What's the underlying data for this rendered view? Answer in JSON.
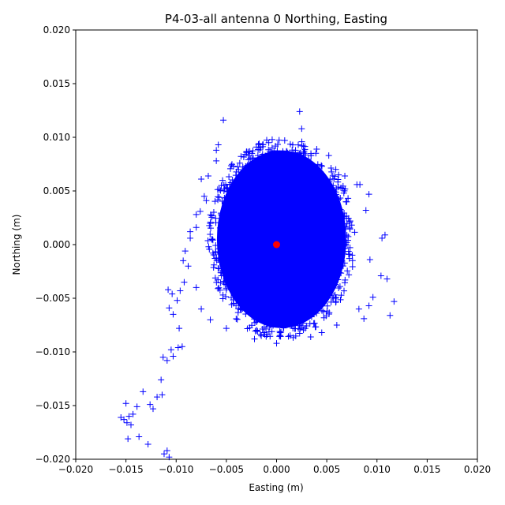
{
  "chart_data": {
    "type": "scatter",
    "title": "P4-03-all antenna 0 Northing, Easting",
    "xlabel": "Easting (m)",
    "ylabel": "Northing (m)",
    "xlim": [
      -0.02,
      0.02
    ],
    "ylim": [
      -0.02,
      0.02
    ],
    "xticks": [
      -0.02,
      -0.015,
      -0.01,
      -0.005,
      0.0,
      0.005,
      0.01,
      0.015,
      0.02
    ],
    "yticks": [
      -0.02,
      -0.015,
      -0.01,
      -0.005,
      0.0,
      0.005,
      0.01,
      0.015,
      0.02
    ],
    "xtick_labels": [
      "−0.020",
      "−0.015",
      "−0.010",
      "−0.005",
      "0.000",
      "0.005",
      "0.010",
      "0.015",
      "0.020"
    ],
    "ytick_labels": [
      "−0.020",
      "−0.015",
      "−0.010",
      "−0.005",
      "0.000",
      "0.005",
      "0.010",
      "0.015",
      "0.020"
    ],
    "grid": false,
    "series": [
      {
        "marker": "+",
        "color": "#0000ff",
        "cluster": {
          "description_of_shape": "dense cloud",
          "center": [
            0.0,
            0.0
          ],
          "x_range": [
            -0.0065,
            0.0075
          ],
          "y_range": [
            -0.0085,
            0.0095
          ]
        },
        "points": [
          [
            -0.0155,
            -0.0161
          ],
          [
            -0.0152,
            -0.0163
          ],
          [
            -0.0149,
            -0.0166
          ],
          [
            -0.0147,
            -0.016
          ],
          [
            -0.0145,
            -0.0168
          ],
          [
            -0.0143,
            -0.0158
          ],
          [
            -0.015,
            -0.0148
          ],
          [
            -0.0148,
            -0.0181
          ],
          [
            -0.0139,
            -0.0151
          ],
          [
            -0.0133,
            -0.0137
          ],
          [
            -0.0137,
            -0.0179
          ],
          [
            -0.0128,
            -0.0186
          ],
          [
            -0.0126,
            -0.0149
          ],
          [
            -0.0123,
            -0.0153
          ],
          [
            -0.0119,
            -0.0142
          ],
          [
            -0.0114,
            -0.014
          ],
          [
            -0.0115,
            -0.0126
          ],
          [
            -0.0112,
            -0.0195
          ],
          [
            -0.0109,
            -0.0192
          ],
          [
            -0.0107,
            -0.0198
          ],
          [
            -0.0113,
            -0.0105
          ],
          [
            -0.0109,
            -0.0108
          ],
          [
            -0.0103,
            -0.0104
          ],
          [
            -0.0105,
            -0.0098
          ],
          [
            -0.0098,
            -0.0096
          ],
          [
            -0.0094,
            -0.0095
          ],
          [
            -0.0097,
            -0.0078
          ],
          [
            -0.0107,
            -0.0059
          ],
          [
            -0.0103,
            -0.0065
          ],
          [
            -0.0099,
            -0.0052
          ],
          [
            -0.0108,
            -0.0042
          ],
          [
            -0.0104,
            -0.0046
          ],
          [
            -0.0096,
            -0.0043
          ],
          [
            -0.0092,
            -0.0035
          ],
          [
            -0.0093,
            -0.0015
          ],
          [
            -0.0091,
            -0.0006
          ],
          [
            -0.0086,
            0.0006
          ],
          [
            -0.008,
            0.0016
          ],
          [
            -0.0076,
            0.0031
          ],
          [
            -0.0072,
            0.0045
          ],
          [
            -0.0075,
            0.0061
          ],
          [
            -0.0068,
            0.0064
          ],
          [
            -0.006,
            0.0088
          ],
          [
            -0.0058,
            0.0093
          ],
          [
            -0.0053,
            0.0116
          ],
          [
            0.0023,
            0.0124
          ],
          [
            0.0025,
            0.0108
          ],
          [
            -0.006,
            0.0078
          ],
          [
            0.0113,
            -0.0066
          ],
          [
            0.0117,
            -0.0053
          ],
          [
            0.011,
            -0.0032
          ],
          [
            0.0104,
            -0.0029
          ],
          [
            0.0096,
            -0.0049
          ],
          [
            0.0092,
            -0.0057
          ],
          [
            0.0087,
            -0.0069
          ],
          [
            0.0082,
            -0.006
          ],
          [
            0.0108,
            0.0009
          ],
          [
            0.0105,
            0.0006
          ],
          [
            0.0093,
            -0.0014
          ],
          [
            0.0089,
            0.0032
          ],
          [
            0.0092,
            0.0047
          ],
          [
            0.0083,
            0.0056
          ],
          [
            0.008,
            0.0056
          ],
          [
            0.0068,
            0.0064
          ],
          [
            0.0059,
            0.007
          ],
          [
            0.0052,
            0.0083
          ],
          [
            0.004,
            0.0089
          ],
          [
            0.006,
            -0.0075
          ],
          [
            0.0045,
            -0.0082
          ],
          [
            0.0034,
            -0.0086
          ],
          [
            0.0,
            -0.0092
          ],
          [
            -0.0022,
            -0.0088
          ],
          [
            -0.005,
            -0.0078
          ],
          [
            -0.0066,
            -0.007
          ],
          [
            -0.0075,
            -0.006
          ],
          [
            -0.008,
            -0.004
          ],
          [
            -0.0088,
            -0.002
          ],
          [
            -0.0086,
            0.0012
          ],
          [
            -0.008,
            0.0028
          ],
          [
            -0.007,
            0.0041
          ]
        ]
      },
      {
        "marker": "o",
        "color": "#ff0000",
        "points": [
          [
            0.0,
            0.0
          ]
        ]
      }
    ]
  }
}
